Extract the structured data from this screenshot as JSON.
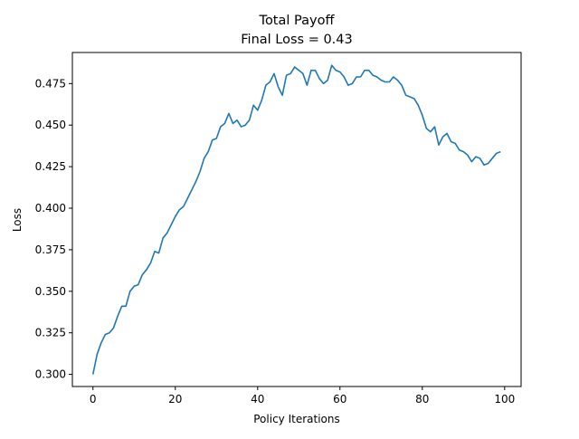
{
  "chart_data": {
    "type": "line",
    "title": "Total Payoff",
    "subtitle": "Final Loss = 0.43",
    "xlabel": "Policy Iterations",
    "ylabel": "Loss",
    "xlim": [
      -5,
      104
    ],
    "ylim": [
      0.2927,
      0.4937
    ],
    "xticks": [
      0,
      20,
      40,
      60,
      80,
      100
    ],
    "yticks": [
      0.3,
      0.325,
      0.35,
      0.375,
      0.4,
      0.425,
      0.45,
      0.475
    ],
    "ytick_labels": [
      "0.300",
      "0.325",
      "0.350",
      "0.375",
      "0.400",
      "0.425",
      "0.450",
      "0.475"
    ],
    "grid": false,
    "legend": "none",
    "series": [
      {
        "color": "#1f77b4",
        "x": [
          0,
          1,
          2,
          3,
          4,
          5,
          6,
          7,
          8,
          9,
          10,
          11,
          12,
          13,
          14,
          15,
          16,
          17,
          18,
          19,
          20,
          21,
          22,
          23,
          24,
          25,
          26,
          27,
          28,
          29,
          30,
          31,
          32,
          33,
          34,
          35,
          36,
          37,
          38,
          39,
          40,
          41,
          42,
          43,
          44,
          45,
          46,
          47,
          48,
          49,
          50,
          51,
          52,
          53,
          54,
          55,
          56,
          57,
          58,
          59,
          60,
          61,
          62,
          63,
          64,
          65,
          66,
          67,
          68,
          69,
          70,
          71,
          72,
          73,
          74,
          75,
          76,
          77,
          78,
          79,
          80,
          81,
          82,
          83,
          84,
          85,
          86,
          87,
          88,
          89,
          90,
          91,
          92,
          93,
          94,
          95,
          96,
          97,
          98,
          99
        ],
        "y": [
          0.3,
          0.312,
          0.319,
          0.324,
          0.325,
          0.328,
          0.335,
          0.341,
          0.341,
          0.35,
          0.353,
          0.354,
          0.36,
          0.363,
          0.367,
          0.374,
          0.373,
          0.382,
          0.385,
          0.39,
          0.395,
          0.399,
          0.401,
          0.406,
          0.411,
          0.416,
          0.422,
          0.43,
          0.434,
          0.441,
          0.442,
          0.449,
          0.451,
          0.457,
          0.451,
          0.453,
          0.449,
          0.45,
          0.453,
          0.462,
          0.459,
          0.465,
          0.474,
          0.476,
          0.481,
          0.473,
          0.468,
          0.48,
          0.481,
          0.485,
          0.483,
          0.481,
          0.474,
          0.483,
          0.483,
          0.478,
          0.475,
          0.477,
          0.486,
          0.483,
          0.482,
          0.479,
          0.474,
          0.475,
          0.479,
          0.479,
          0.483,
          0.483,
          0.48,
          0.479,
          0.477,
          0.476,
          0.476,
          0.479,
          0.477,
          0.474,
          0.468,
          0.467,
          0.466,
          0.462,
          0.456,
          0.448,
          0.446,
          0.449,
          0.438,
          0.443,
          0.445,
          0.44,
          0.439,
          0.435,
          0.434,
          0.432,
          0.428,
          0.431,
          0.43,
          0.426,
          0.427,
          0.43,
          0.433,
          0.434
        ]
      }
    ]
  }
}
